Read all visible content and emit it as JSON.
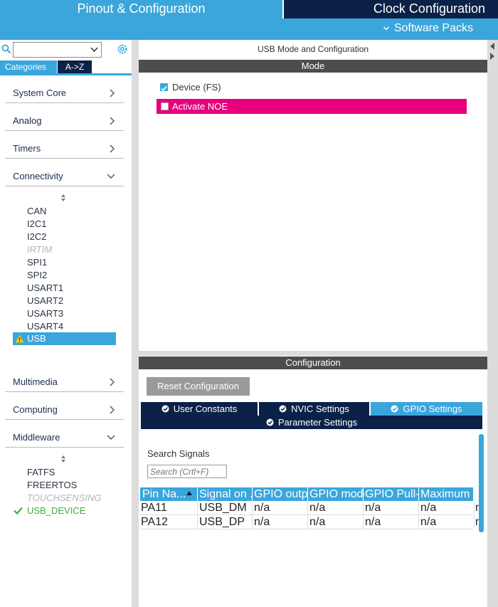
{
  "header": {
    "tab_pinout": "Pinout & Configuration",
    "tab_clock": "Clock Configuration",
    "software_packs": "Software Packs"
  },
  "sidebar": {
    "view_tabs": [
      "Categories",
      "A->Z"
    ],
    "categories": [
      "System Core",
      "Analog",
      "Timers",
      "Connectivity",
      "Multimedia",
      "Computing",
      "Middleware"
    ],
    "connectivity_items": [
      {
        "label": "CAN",
        "disabled": false
      },
      {
        "label": "I2C1",
        "disabled": false
      },
      {
        "label": "I2C2",
        "disabled": false
      },
      {
        "label": "IRTIM",
        "disabled": true
      },
      {
        "label": "SPI1",
        "disabled": false
      },
      {
        "label": "SPI2",
        "disabled": false
      },
      {
        "label": "USART1",
        "disabled": false
      },
      {
        "label": "USART2",
        "disabled": false
      },
      {
        "label": "USART3",
        "disabled": false
      },
      {
        "label": "USART4",
        "disabled": false
      },
      {
        "label": "USB",
        "disabled": false,
        "selected": true,
        "status": "warning"
      }
    ],
    "middleware_items": [
      {
        "label": "FATFS",
        "disabled": false
      },
      {
        "label": "FREERTOS",
        "disabled": false
      },
      {
        "label": "TOUCHSENSING",
        "disabled": true
      },
      {
        "label": "USB_DEVICE",
        "disabled": false,
        "status": "ok"
      }
    ]
  },
  "mode_panel": {
    "title": "USB Mode and Configuration",
    "section": "Mode",
    "device_fs_label": "Device (FS)",
    "device_fs_checked": true,
    "activate_noe_label": "Activate NOE",
    "activate_noe_checked": false
  },
  "config_panel": {
    "section": "Configuration",
    "reset_button": "Reset Configuration",
    "tabs": [
      "User Constants",
      "NVIC Settings",
      "GPIO Settings",
      "Parameter Settings"
    ],
    "active_tab": "GPIO Settings",
    "search_label": "Search Signals",
    "search_placeholder": "Search (Crtl+F)",
    "table": {
      "headers": [
        "Pin Na...",
        "Signal on ...",
        "GPIO outp...",
        "GPIO mode",
        "GPIO Pull-...",
        "Maximum ...",
        ""
      ],
      "rows": [
        [
          "PA11",
          "USB_DM",
          "n/a",
          "n/a",
          "n/a",
          "n/a",
          "n"
        ],
        [
          "PA12",
          "USB_DP",
          "n/a",
          "n/a",
          "n/a",
          "n/a",
          "n"
        ]
      ]
    }
  },
  "colors": {
    "accent": "#3aa6dc",
    "dark_navy": "#0b2148",
    "highlight_pink": "#e6007e",
    "section_bar": "#4d4d4d",
    "ok_green": "#3cb043",
    "warning_yellow": "#f5c400"
  }
}
